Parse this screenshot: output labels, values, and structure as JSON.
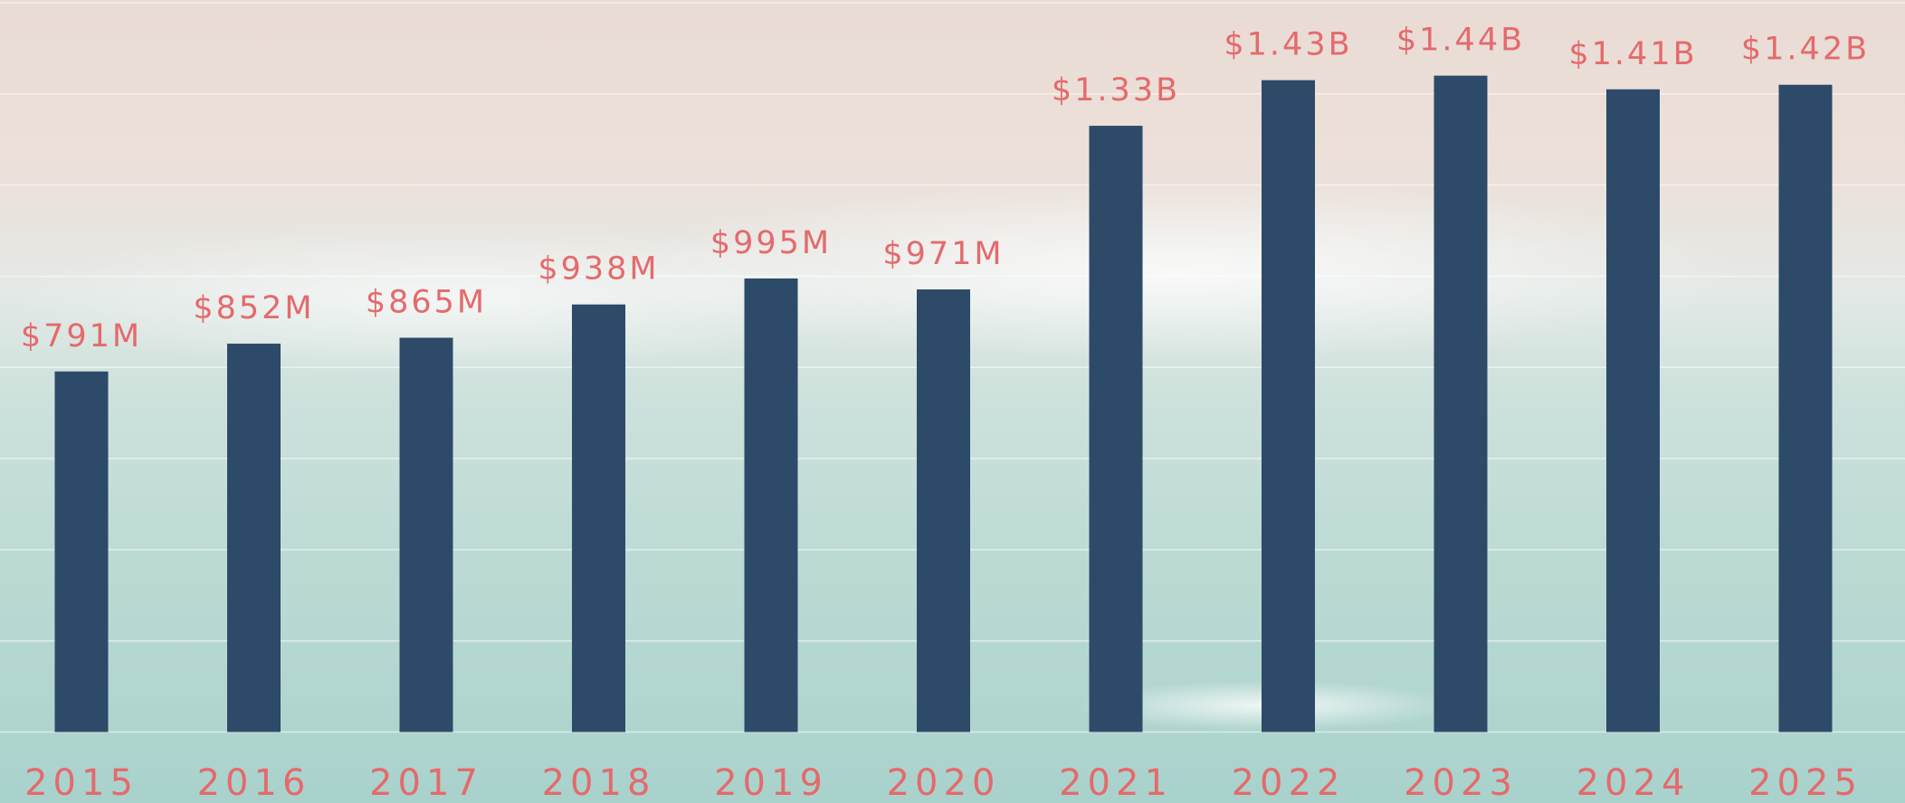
{
  "chart_data": {
    "type": "bar",
    "categories": [
      "2015",
      "2016",
      "2017",
      "2018",
      "2019",
      "2020",
      "2021",
      "2022",
      "2023",
      "2024",
      "2025"
    ],
    "values": [
      791000000,
      852000000,
      865000000,
      938000000,
      995000000,
      971000000,
      1330000000,
      1430000000,
      1440000000,
      1410000000,
      1420000000
    ],
    "value_labels": [
      "$791M",
      "$852M",
      "$865M",
      "$938M",
      "$995M",
      "$971M",
      "$1.33B",
      "$1.43B",
      "$1.44B",
      "$1.41B",
      "$1.42B"
    ],
    "color": "#2d4a69",
    "label_color": "#e46a6c",
    "ylim": [
      0,
      1600000000
    ],
    "yticks": [
      0,
      200000000,
      400000000,
      600000000,
      800000000,
      1000000000,
      1200000000,
      1400000000,
      1600000000
    ],
    "grid": true
  }
}
